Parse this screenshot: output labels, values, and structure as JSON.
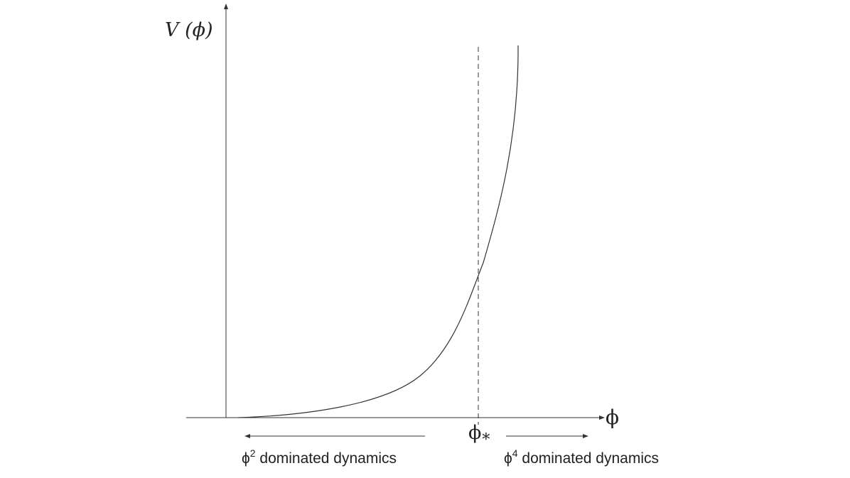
{
  "axes": {
    "y_label": "V (ϕ)",
    "x_label": "ϕ"
  },
  "marker": {
    "label": "ϕ",
    "subscript": "*"
  },
  "regions": {
    "left": {
      "base": "ϕ",
      "exponent": "2",
      "text": " dominated dynamics"
    },
    "right": {
      "base": "ϕ",
      "exponent": "4",
      "text": " dominated dynamics"
    }
  },
  "colors": {
    "stroke": "#333333",
    "text": "#222222"
  }
}
